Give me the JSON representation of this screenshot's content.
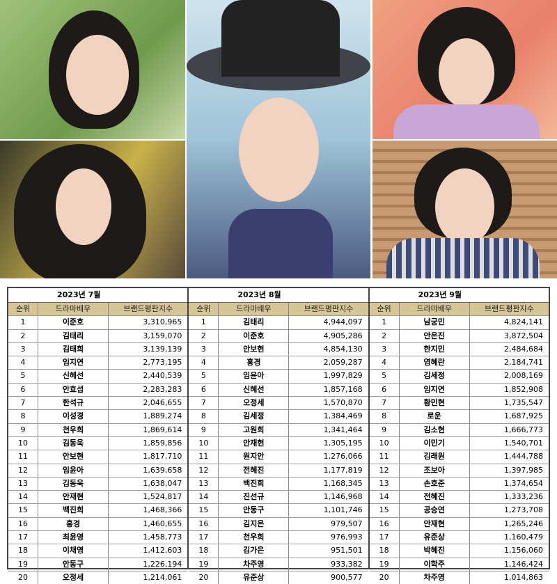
{
  "columns": [
    "순위",
    "드라마배우",
    "브랜드평판지수"
  ],
  "tables": [
    {
      "title": "2023년 7월",
      "rows": [
        [
          "1",
          "이준호",
          "3,310,965"
        ],
        [
          "2",
          "김태리",
          "3,159,070"
        ],
        [
          "3",
          "김태희",
          "3,139,139"
        ],
        [
          "4",
          "임지연",
          "2,773,195"
        ],
        [
          "5",
          "신혜선",
          "2,440,539"
        ],
        [
          "6",
          "안효섭",
          "2,283,283"
        ],
        [
          "7",
          "한석규",
          "2,046,655"
        ],
        [
          "8",
          "이성경",
          "1,889,274"
        ],
        [
          "9",
          "천우희",
          "1,869,614"
        ],
        [
          "10",
          "김동욱",
          "1,859,856"
        ],
        [
          "11",
          "안보현",
          "1,817,710"
        ],
        [
          "12",
          "임윤아",
          "1,639,658"
        ],
        [
          "13",
          "김동욱",
          "1,638,047"
        ],
        [
          "14",
          "안재현",
          "1,524,817"
        ],
        [
          "15",
          "백진희",
          "1,468,366"
        ],
        [
          "16",
          "홍경",
          "1,460,655"
        ],
        [
          "17",
          "최윤영",
          "1,458,773"
        ],
        [
          "18",
          "이채영",
          "1,412,603"
        ],
        [
          "19",
          "안동구",
          "1,226,194"
        ],
        [
          "20",
          "오정세",
          "1,214,061"
        ]
      ]
    },
    {
      "title": "2023년 8월",
      "rows": [
        [
          "1",
          "김태리",
          "4,944,097"
        ],
        [
          "2",
          "이준호",
          "4,905,286"
        ],
        [
          "3",
          "안보현",
          "4,854,130"
        ],
        [
          "4",
          "홍경",
          "2,059,287"
        ],
        [
          "5",
          "임윤아",
          "1,997,829"
        ],
        [
          "6",
          "신혜선",
          "1,857,168"
        ],
        [
          "7",
          "오정세",
          "1,570,870"
        ],
        [
          "8",
          "김세정",
          "1,384,469"
        ],
        [
          "9",
          "고원희",
          "1,341,464"
        ],
        [
          "10",
          "안재현",
          "1,305,195"
        ],
        [
          "11",
          "원지안",
          "1,276,066"
        ],
        [
          "12",
          "전혜진",
          "1,177,819"
        ],
        [
          "13",
          "백진희",
          "1,168,345"
        ],
        [
          "14",
          "진선규",
          "1,146,968"
        ],
        [
          "15",
          "안동구",
          "1,101,746"
        ],
        [
          "16",
          "김지은",
          "979,507"
        ],
        [
          "17",
          "천우희",
          "976,993"
        ],
        [
          "18",
          "김가은",
          "951,501"
        ],
        [
          "19",
          "차주영",
          "933,382"
        ],
        [
          "20",
          "유준상",
          "900,577"
        ]
      ]
    },
    {
      "title": "2023년 9월",
      "rows": [
        [
          "1",
          "남궁민",
          "4,824,141"
        ],
        [
          "2",
          "안은진",
          "3,872,504"
        ],
        [
          "3",
          "한지민",
          "2,484,684"
        ],
        [
          "4",
          "염혜란",
          "2,184,741"
        ],
        [
          "5",
          "김세정",
          "2,008,169"
        ],
        [
          "6",
          "임지연",
          "1,852,908"
        ],
        [
          "7",
          "황민현",
          "1,735,547"
        ],
        [
          "8",
          "로운",
          "1,687,925"
        ],
        [
          "9",
          "김소현",
          "1,666,773"
        ],
        [
          "10",
          "이민기",
          "1,540,701"
        ],
        [
          "11",
          "김래원",
          "1,444,788"
        ],
        [
          "12",
          "조보아",
          "1,397,985"
        ],
        [
          "13",
          "손호준",
          "1,374,654"
        ],
        [
          "14",
          "전혜진",
          "1,333,236"
        ],
        [
          "15",
          "공승연",
          "1,273,708"
        ],
        [
          "16",
          "안재현",
          "1,265,246"
        ],
        [
          "17",
          "유준상",
          "1,160,479"
        ],
        [
          "18",
          "박혜진",
          "1,156,060"
        ],
        [
          "19",
          "이학주",
          "1,146,424"
        ],
        [
          "20",
          "차주영",
          "1,014,863"
        ]
      ]
    }
  ],
  "colors": {
    "header_bg": "#d6c596",
    "border": "#444444"
  }
}
